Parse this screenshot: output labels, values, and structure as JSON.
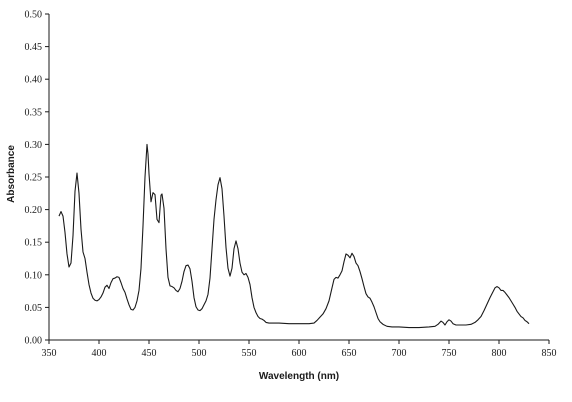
{
  "chart_data": {
    "type": "line",
    "title": "",
    "xlabel": "Wavelength (nm)",
    "ylabel": "Absorbance",
    "xlim": [
      350,
      850
    ],
    "ylim": [
      0,
      0.5
    ],
    "x_ticks": [
      350,
      400,
      450,
      500,
      550,
      600,
      650,
      700,
      750,
      800,
      850
    ],
    "x_tick_labels": [
      "350",
      "400",
      "450",
      "500",
      "550",
      "600",
      "650",
      "700",
      "750",
      "800",
      "850"
    ],
    "y_ticks": [
      0,
      0.05,
      0.1,
      0.15,
      0.2,
      0.25,
      0.3,
      0.35,
      0.4,
      0.45,
      0.5
    ],
    "y_tick_labels": [
      "0.00",
      "0.05",
      "0.10",
      "0.15",
      "0.20",
      "0.25",
      "0.30",
      "0.35",
      "0.40",
      "0.45",
      "0.50"
    ],
    "grid": false,
    "line_color": "#1a1a1a",
    "series": [
      {
        "points": [
          [
            360,
            0.19
          ],
          [
            362,
            0.197
          ],
          [
            364,
            0.19
          ],
          [
            366,
            0.165
          ],
          [
            368,
            0.132
          ],
          [
            370,
            0.112
          ],
          [
            372,
            0.118
          ],
          [
            374,
            0.16
          ],
          [
            376,
            0.228
          ],
          [
            378,
            0.256
          ],
          [
            380,
            0.225
          ],
          [
            382,
            0.17
          ],
          [
            384,
            0.135
          ],
          [
            386,
            0.125
          ],
          [
            388,
            0.104
          ],
          [
            390,
            0.085
          ],
          [
            392,
            0.072
          ],
          [
            394,
            0.064
          ],
          [
            396,
            0.061
          ],
          [
            398,
            0.06
          ],
          [
            400,
            0.062
          ],
          [
            402,
            0.066
          ],
          [
            404,
            0.072
          ],
          [
            406,
            0.081
          ],
          [
            408,
            0.084
          ],
          [
            410,
            0.079
          ],
          [
            412,
            0.088
          ],
          [
            414,
            0.094
          ],
          [
            416,
            0.095
          ],
          [
            418,
            0.097
          ],
          [
            420,
            0.096
          ],
          [
            422,
            0.088
          ],
          [
            424,
            0.079
          ],
          [
            426,
            0.073
          ],
          [
            428,
            0.063
          ],
          [
            430,
            0.054
          ],
          [
            432,
            0.047
          ],
          [
            434,
            0.046
          ],
          [
            436,
            0.05
          ],
          [
            438,
            0.06
          ],
          [
            440,
            0.076
          ],
          [
            442,
            0.11
          ],
          [
            444,
            0.175
          ],
          [
            446,
            0.25
          ],
          [
            448,
            0.3
          ],
          [
            449,
            0.285
          ],
          [
            450,
            0.255
          ],
          [
            452,
            0.212
          ],
          [
            454,
            0.226
          ],
          [
            456,
            0.223
          ],
          [
            458,
            0.185
          ],
          [
            460,
            0.18
          ],
          [
            462,
            0.222
          ],
          [
            463,
            0.224
          ],
          [
            465,
            0.202
          ],
          [
            467,
            0.14
          ],
          [
            469,
            0.096
          ],
          [
            471,
            0.083
          ],
          [
            473,
            0.082
          ],
          [
            475,
            0.08
          ],
          [
            477,
            0.076
          ],
          [
            479,
            0.074
          ],
          [
            481,
            0.079
          ],
          [
            483,
            0.09
          ],
          [
            485,
            0.105
          ],
          [
            487,
            0.114
          ],
          [
            489,
            0.115
          ],
          [
            491,
            0.109
          ],
          [
            493,
            0.09
          ],
          [
            495,
            0.065
          ],
          [
            497,
            0.051
          ],
          [
            499,
            0.046
          ],
          [
            501,
            0.045
          ],
          [
            503,
            0.048
          ],
          [
            505,
            0.054
          ],
          [
            507,
            0.06
          ],
          [
            509,
            0.07
          ],
          [
            511,
            0.095
          ],
          [
            513,
            0.14
          ],
          [
            515,
            0.185
          ],
          [
            517,
            0.215
          ],
          [
            519,
            0.238
          ],
          [
            521,
            0.249
          ],
          [
            523,
            0.232
          ],
          [
            525,
            0.19
          ],
          [
            527,
            0.142
          ],
          [
            529,
            0.11
          ],
          [
            531,
            0.098
          ],
          [
            533,
            0.11
          ],
          [
            535,
            0.14
          ],
          [
            537,
            0.152
          ],
          [
            539,
            0.14
          ],
          [
            541,
            0.118
          ],
          [
            543,
            0.104
          ],
          [
            545,
            0.1
          ],
          [
            547,
            0.102
          ],
          [
            549,
            0.096
          ],
          [
            551,
            0.085
          ],
          [
            553,
            0.065
          ],
          [
            555,
            0.05
          ],
          [
            557,
            0.042
          ],
          [
            559,
            0.036
          ],
          [
            561,
            0.033
          ],
          [
            563,
            0.032
          ],
          [
            565,
            0.03
          ],
          [
            567,
            0.027
          ],
          [
            570,
            0.026
          ],
          [
            580,
            0.026
          ],
          [
            590,
            0.025
          ],
          [
            600,
            0.025
          ],
          [
            610,
            0.025
          ],
          [
            615,
            0.026
          ],
          [
            618,
            0.03
          ],
          [
            621,
            0.035
          ],
          [
            624,
            0.04
          ],
          [
            627,
            0.048
          ],
          [
            630,
            0.06
          ],
          [
            633,
            0.08
          ],
          [
            635,
            0.093
          ],
          [
            637,
            0.096
          ],
          [
            639,
            0.095
          ],
          [
            641,
            0.1
          ],
          [
            643,
            0.106
          ],
          [
            645,
            0.12
          ],
          [
            647,
            0.132
          ],
          [
            649,
            0.13
          ],
          [
            651,
            0.126
          ],
          [
            653,
            0.133
          ],
          [
            655,
            0.128
          ],
          [
            657,
            0.118
          ],
          [
            659,
            0.114
          ],
          [
            661,
            0.105
          ],
          [
            663,
            0.094
          ],
          [
            665,
            0.082
          ],
          [
            667,
            0.071
          ],
          [
            669,
            0.066
          ],
          [
            671,
            0.064
          ],
          [
            673,
            0.058
          ],
          [
            675,
            0.051
          ],
          [
            677,
            0.042
          ],
          [
            679,
            0.033
          ],
          [
            681,
            0.028
          ],
          [
            684,
            0.024
          ],
          [
            688,
            0.021
          ],
          [
            693,
            0.02
          ],
          [
            700,
            0.02
          ],
          [
            710,
            0.019
          ],
          [
            720,
            0.019
          ],
          [
            730,
            0.02
          ],
          [
            736,
            0.021
          ],
          [
            739,
            0.024
          ],
          [
            742,
            0.029
          ],
          [
            744,
            0.027
          ],
          [
            746,
            0.023
          ],
          [
            748,
            0.028
          ],
          [
            750,
            0.031
          ],
          [
            752,
            0.029
          ],
          [
            754,
            0.025
          ],
          [
            757,
            0.023
          ],
          [
            762,
            0.023
          ],
          [
            767,
            0.023
          ],
          [
            772,
            0.024
          ],
          [
            776,
            0.027
          ],
          [
            779,
            0.031
          ],
          [
            782,
            0.036
          ],
          [
            785,
            0.045
          ],
          [
            788,
            0.055
          ],
          [
            791,
            0.065
          ],
          [
            794,
            0.074
          ],
          [
            796,
            0.08
          ],
          [
            798,
            0.082
          ],
          [
            800,
            0.08
          ],
          [
            802,
            0.076
          ],
          [
            804,
            0.076
          ],
          [
            806,
            0.073
          ],
          [
            808,
            0.069
          ],
          [
            810,
            0.065
          ],
          [
            812,
            0.06
          ],
          [
            814,
            0.055
          ],
          [
            816,
            0.05
          ],
          [
            818,
            0.044
          ],
          [
            820,
            0.04
          ],
          [
            822,
            0.036
          ],
          [
            824,
            0.034
          ],
          [
            826,
            0.03
          ],
          [
            828,
            0.028
          ],
          [
            830,
            0.025
          ]
        ]
      }
    ]
  }
}
